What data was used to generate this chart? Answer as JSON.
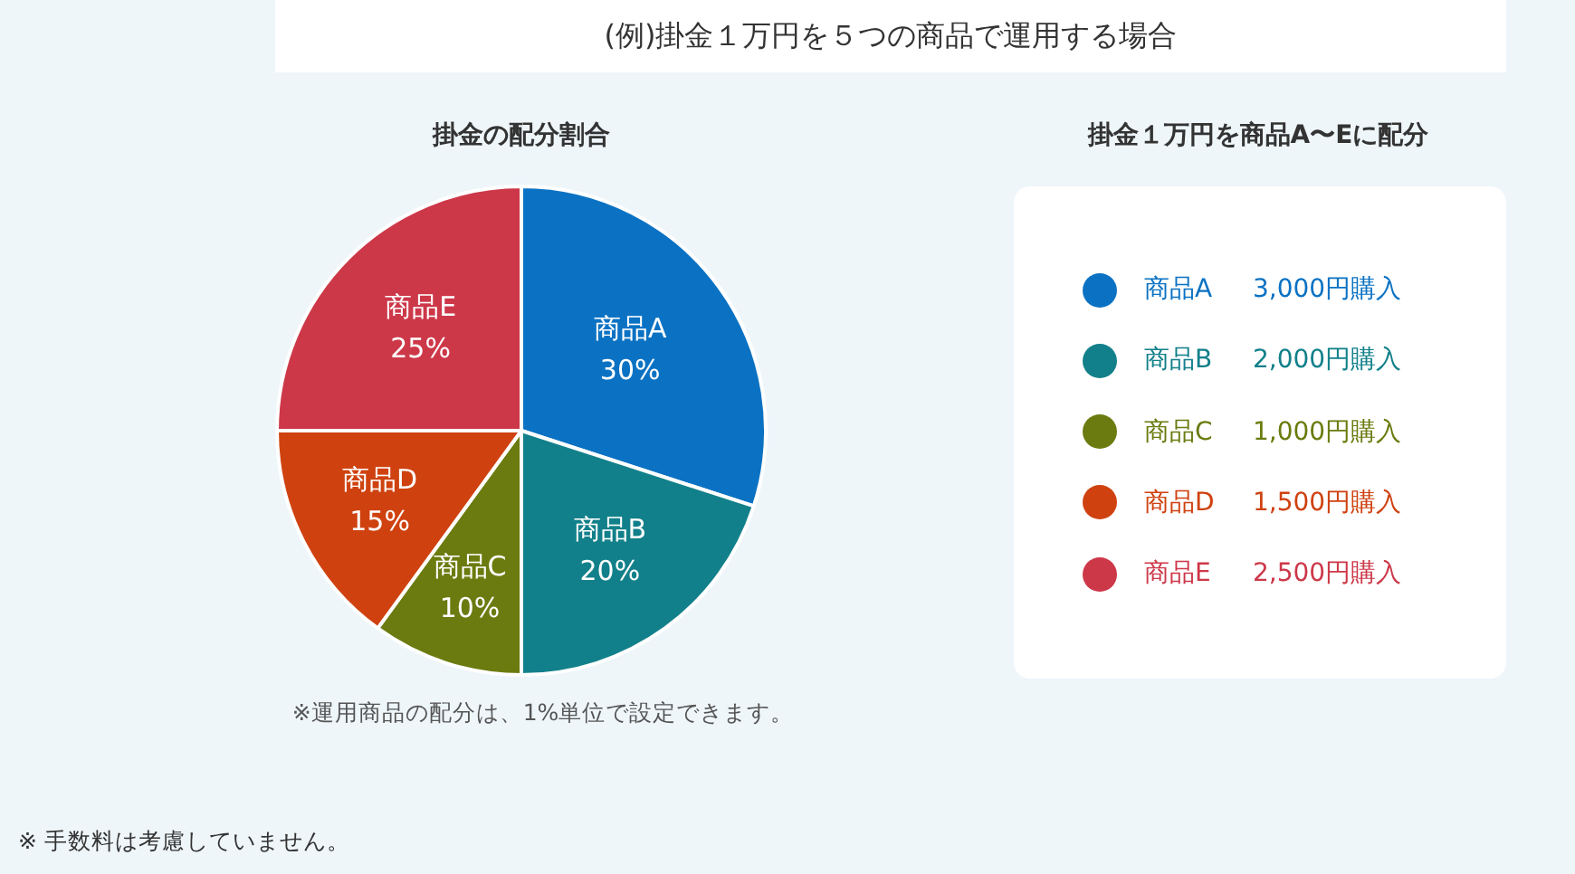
{
  "chart_data": [
    {
      "type": "pie",
      "title": "(例)掛金１万円を５つの商品で運用する場合",
      "subtitle": "掛金の配分割合",
      "categories": [
        "商品A",
        "商品B",
        "商品C",
        "商品D",
        "商品E"
      ],
      "values": [
        30,
        20,
        10,
        15,
        25
      ],
      "value_labels": [
        "30%",
        "20%",
        "10%",
        "15%",
        "25%"
      ],
      "colors": [
        "#0b72c3",
        "#12808a",
        "#6b7b0f",
        "#cf4210",
        "#cd3849"
      ],
      "annotations": [
        "※運用商品の配分は、1%単位で設定できます。",
        "※ 手数料は考慮していません。"
      ]
    },
    {
      "type": "other",
      "title": "掛金１万円を商品A〜Eに配分",
      "categories": [
        "商品A",
        "商品B",
        "商品C",
        "商品D",
        "商品E"
      ],
      "value_labels": [
        "3,000円購入",
        "2,000円購入",
        "1,000円購入",
        "1,500円購入",
        "2,500円購入"
      ],
      "colors": [
        "#0b72c3",
        "#12808a",
        "#6b7b0f",
        "#cf4210",
        "#cd3849"
      ]
    }
  ]
}
